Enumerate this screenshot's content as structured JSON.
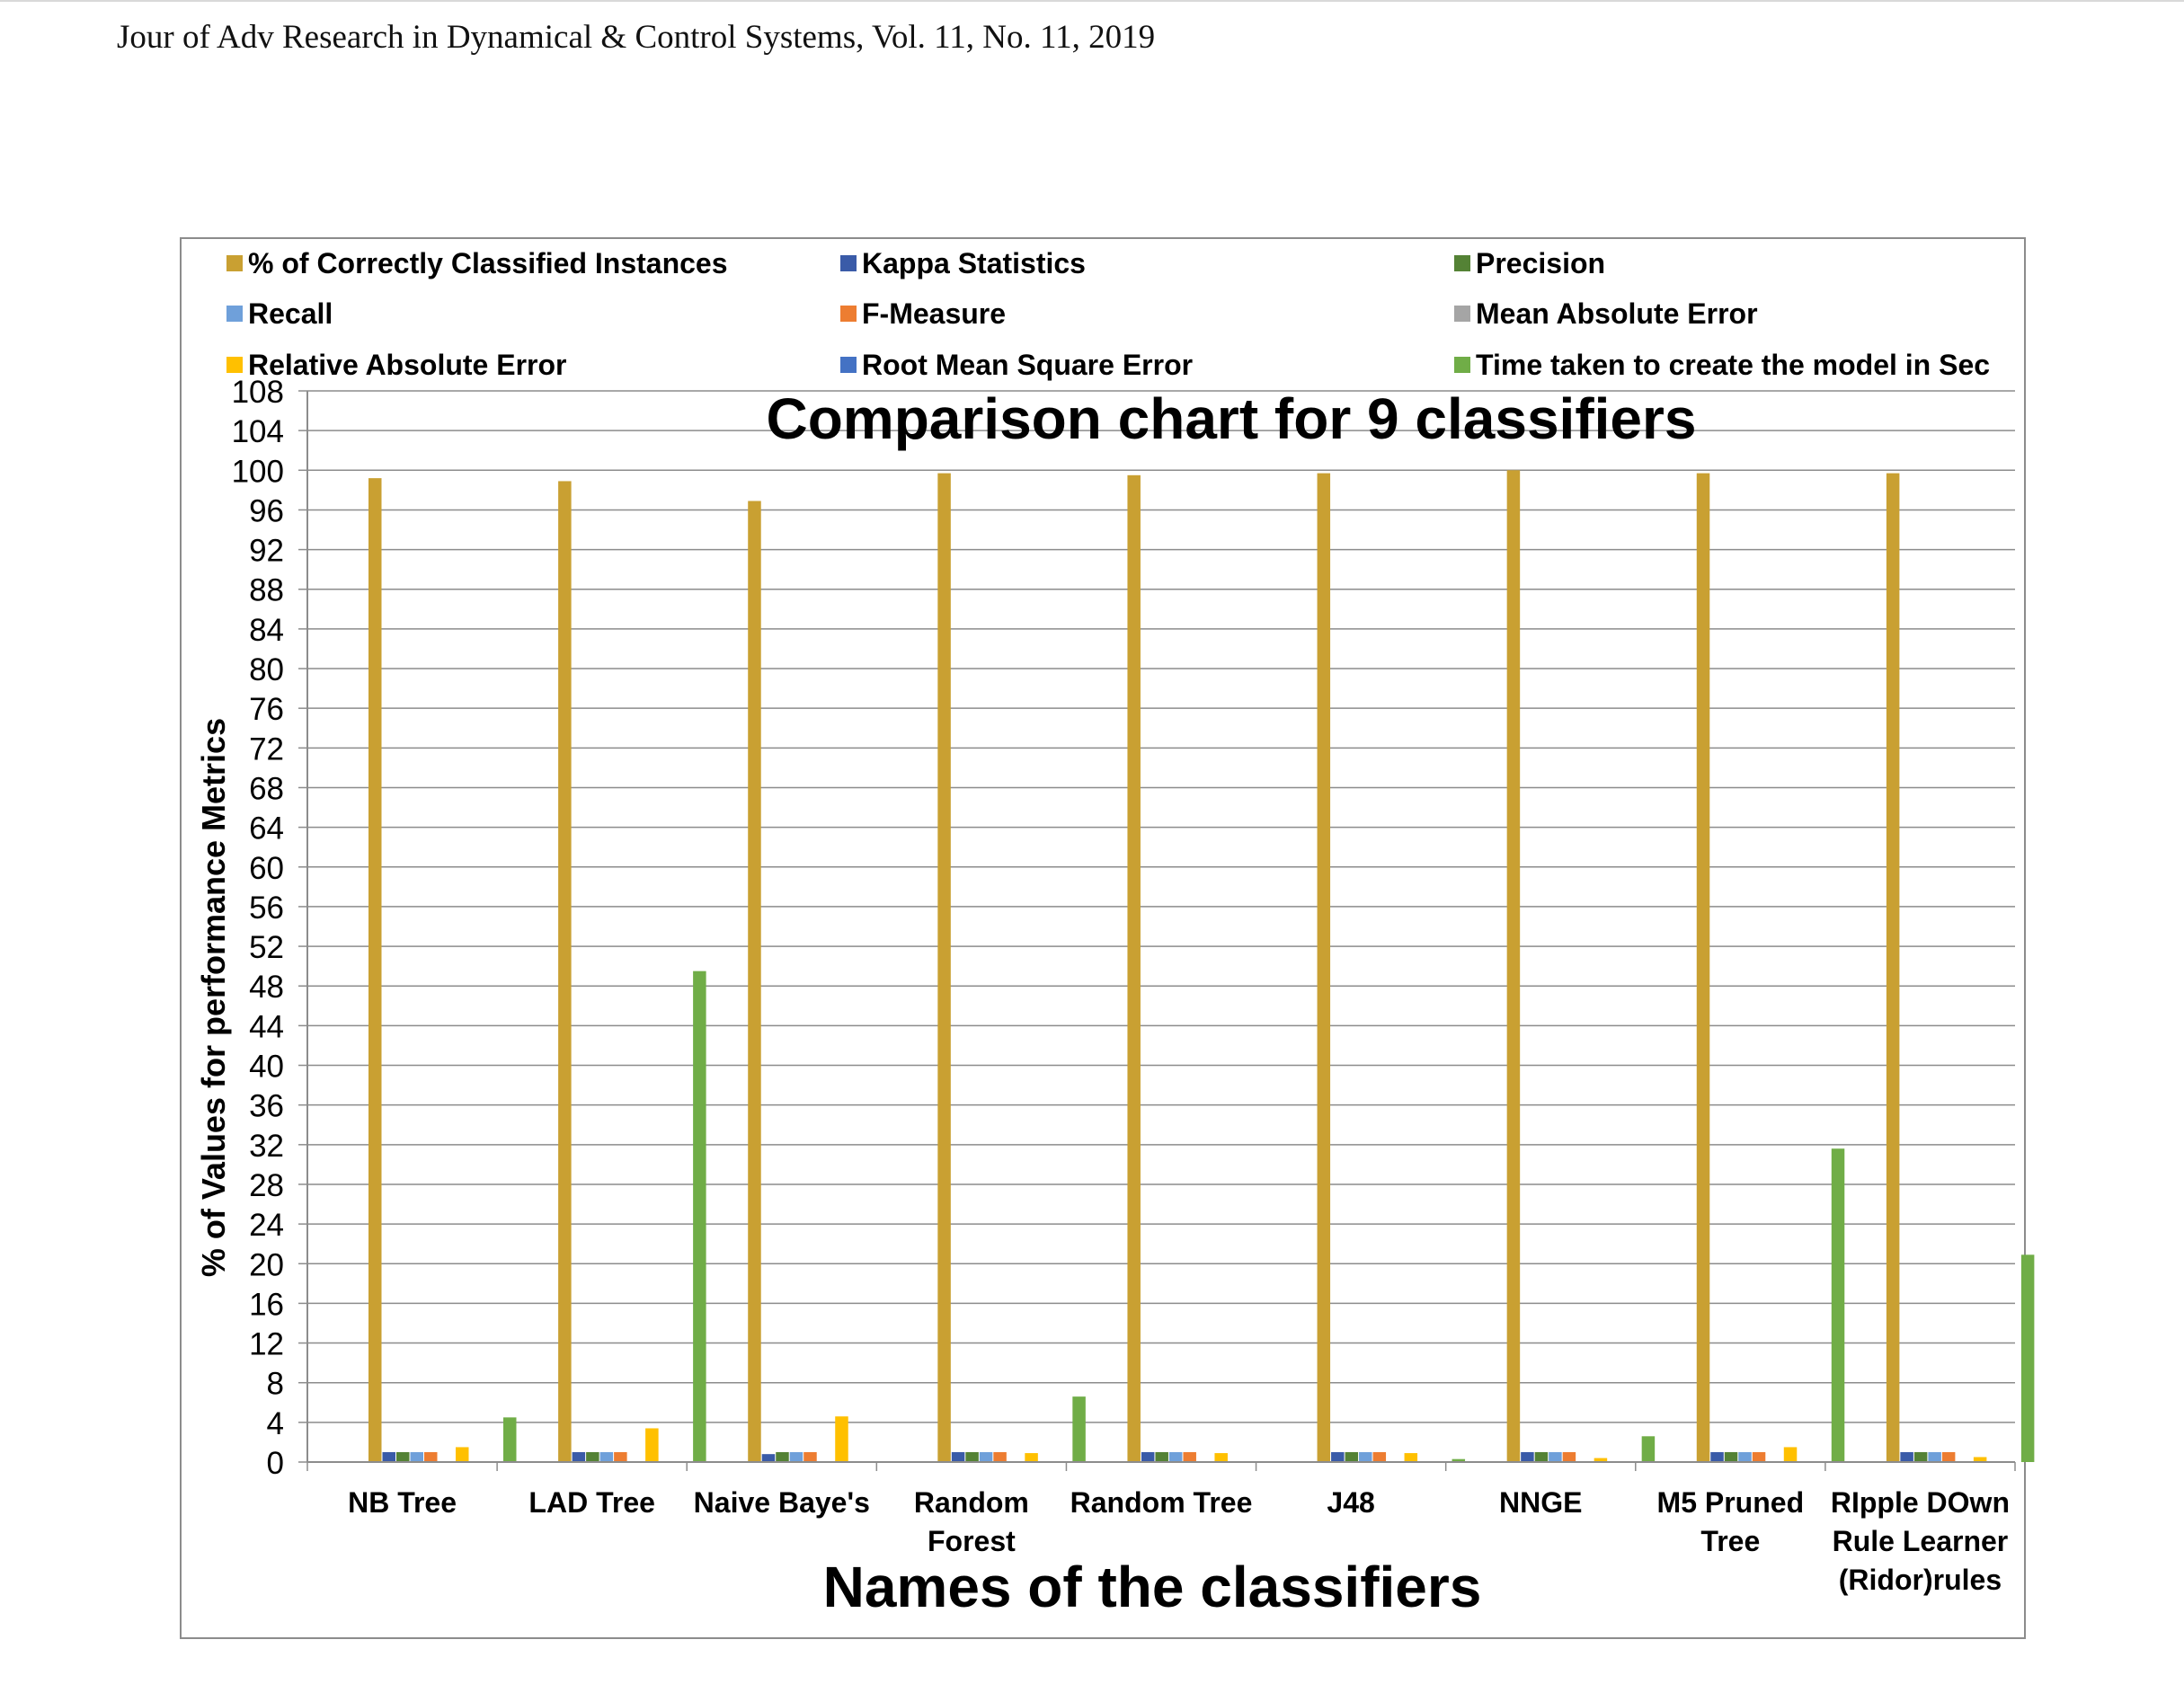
{
  "header": {
    "journal_line": "Jour of Adv Research in Dynamical & Control Systems, Vol. 11, No. 11, 2019"
  },
  "colors": {
    "series": [
      "#C9A032",
      "#3A5BA8",
      "#548235",
      "#6FA0DA",
      "#ED7D31",
      "#A5A5A5",
      "#FFC000",
      "#4472C4",
      "#70AD47"
    ],
    "gridline": "#8c8c8c",
    "text": "#000000"
  },
  "chart_data": {
    "type": "bar",
    "title": "Comparison chart for 9 classifiers",
    "xlabel": "Names of the classifiers",
    "ylabel": "% of Values for performance Metrics",
    "ylim": [
      0,
      108
    ],
    "y_ticks": [
      0,
      4,
      8,
      12,
      16,
      20,
      24,
      28,
      32,
      36,
      40,
      44,
      48,
      52,
      56,
      60,
      64,
      68,
      72,
      76,
      80,
      84,
      88,
      92,
      96,
      100,
      104,
      108
    ],
    "grid": true,
    "legend_position": "top",
    "categories": [
      [
        "NB Tree"
      ],
      [
        "LAD  Tree"
      ],
      [
        "Naive Baye's"
      ],
      [
        "Random",
        "Forest"
      ],
      [
        "Random Tree"
      ],
      [
        "J48"
      ],
      [
        "NNGE"
      ],
      [
        "M5  Pruned",
        "Tree"
      ],
      [
        "RIpple DOwn",
        "Rule Learner",
        "(Ridor)rules"
      ]
    ],
    "series": [
      {
        "name": "% of Correctly Classified Instances",
        "values": [
          99.2,
          98.9,
          96.9,
          99.7,
          99.5,
          99.7,
          100,
          99.7,
          99.7
        ]
      },
      {
        "name": "Kappa Statistics",
        "values": [
          1.0,
          1.0,
          0.8,
          1.0,
          1.0,
          1.0,
          1.0,
          1.0,
          1.0
        ]
      },
      {
        "name": "Precision",
        "values": [
          1.0,
          1.0,
          1.0,
          1.0,
          1.0,
          1.0,
          1.0,
          1.0,
          1.0
        ]
      },
      {
        "name": "Recall",
        "values": [
          1.0,
          1.0,
          1.0,
          1.0,
          1.0,
          1.0,
          1.0,
          1.0,
          1.0
        ]
      },
      {
        "name": "F-Measure",
        "values": [
          1.0,
          1.0,
          1.0,
          1.0,
          1.0,
          1.0,
          1.0,
          1.0,
          1.0
        ]
      },
      {
        "name": "Mean Absolute Error",
        "values": [
          0.0,
          0.0,
          0.0,
          0.0,
          0.0,
          0.0,
          0.0,
          0.0,
          0.0
        ]
      },
      {
        "name": "Relative Absolute Error",
        "values": [
          1.5,
          3.4,
          4.6,
          0.9,
          0.9,
          0.9,
          0.4,
          1.5,
          0.5
        ]
      },
      {
        "name": "Root Mean Square Error",
        "values": [
          0.0,
          0.0,
          0.0,
          0.0,
          0.0,
          0.0,
          0.0,
          0.0,
          0.0
        ]
      },
      {
        "name": "Time taken to create the model  in Sec",
        "values": [
          4.5,
          49.5,
          0.0,
          6.6,
          0.0,
          0.3,
          2.6,
          31.6,
          20.9
        ]
      }
    ]
  }
}
